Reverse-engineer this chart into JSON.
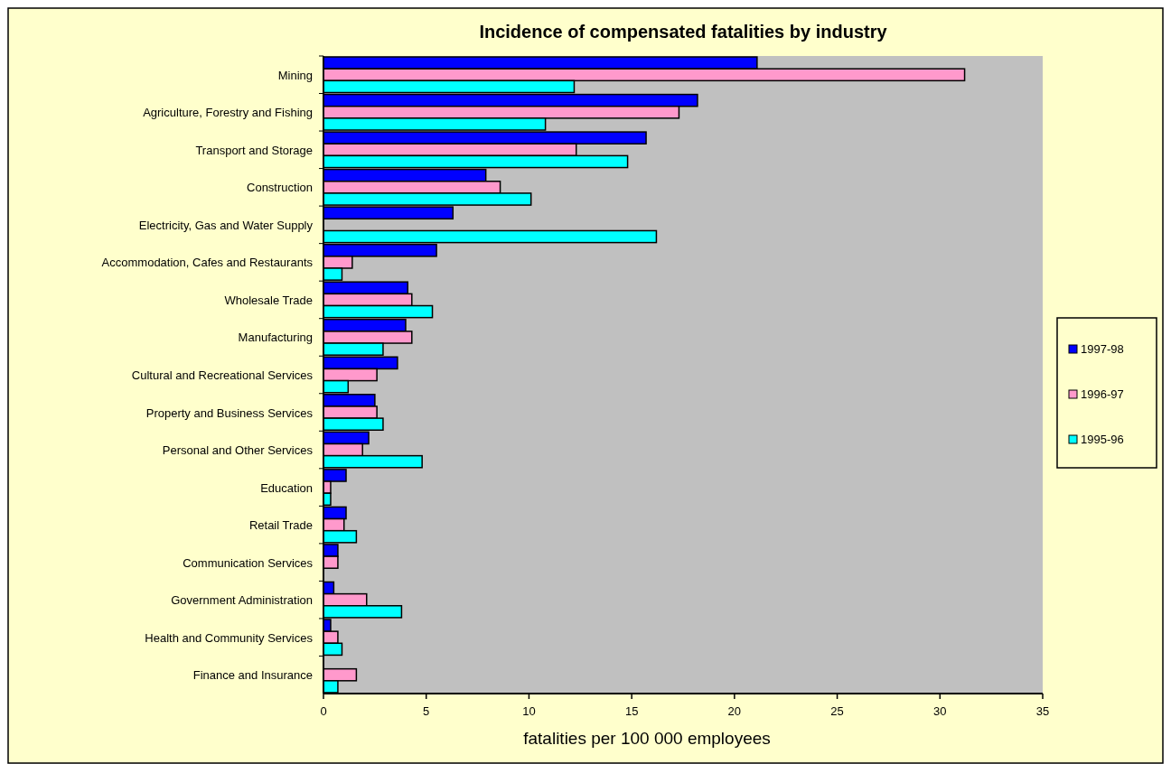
{
  "chart_data": {
    "type": "bar",
    "orientation": "horizontal",
    "title": "Incidence of compensated fatalities by industry",
    "xlabel": "fatalities per 100 000 employees",
    "categories": [
      "Mining",
      "Agriculture, Forestry and Fishing",
      "Transport and Storage",
      "Construction",
      "Electricity, Gas and Water Supply",
      "Accommodation, Cafes and Restaurants",
      "Wholesale Trade",
      "Manufacturing",
      "Cultural and Recreational Services",
      "Property and Business Services",
      "Personal and Other Services",
      "Education",
      "Retail Trade",
      "Communication Services",
      "Government Administration",
      "Health and Community Services",
      "Finance and Insurance"
    ],
    "series": [
      {
        "name": "1997-98",
        "color": "#0000ff",
        "values": [
          21.1,
          18.2,
          15.7,
          7.9,
          6.3,
          5.5,
          4.1,
          4.0,
          3.6,
          2.5,
          2.2,
          1.1,
          1.1,
          0.7,
          0.5,
          0.35,
          null
        ]
      },
      {
        "name": "1996-97",
        "color": "#ff99cc",
        "values": [
          31.2,
          17.3,
          12.3,
          8.6,
          null,
          1.4,
          4.3,
          4.3,
          2.6,
          2.6,
          1.9,
          0.35,
          1.0,
          0.7,
          2.1,
          0.7,
          1.6
        ]
      },
      {
        "name": "1995-96",
        "color": "#00ffff",
        "values": [
          12.2,
          10.8,
          14.8,
          10.1,
          16.2,
          0.9,
          5.3,
          2.9,
          1.2,
          2.9,
          4.8,
          0.35,
          1.6,
          null,
          3.8,
          0.9,
          0.7
        ]
      }
    ],
    "xlim": [
      0,
      35
    ],
    "xticks": [
      0,
      5,
      10,
      15,
      20,
      25,
      30,
      35
    ],
    "grid": false,
    "legend": "right"
  }
}
